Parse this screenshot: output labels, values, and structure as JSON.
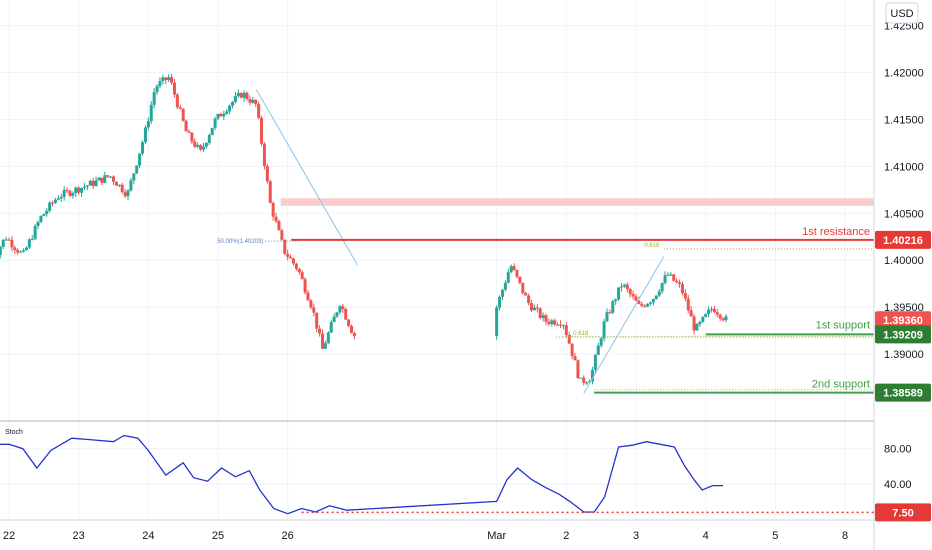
{
  "currency": "USD",
  "chart_data": [
    {
      "type": "candlestick",
      "ylim": [
        1.3835,
        1.4272
      ],
      "y_ticks": [
        1.39,
        1.395,
        1.4,
        1.405,
        1.41,
        1.415,
        1.42,
        1.425
      ],
      "y_tick_labels": [
        "1.39000",
        "1.39500",
        "1.40000",
        "1.40500",
        "1.41000",
        "1.41500",
        "1.42000",
        "1.42500"
      ],
      "x_ticks": [
        {
          "label": "22",
          "day": 22
        },
        {
          "label": "23",
          "day": 23
        },
        {
          "label": "24",
          "day": 24
        },
        {
          "label": "25",
          "day": 25
        },
        {
          "label": "26",
          "day": 26
        },
        {
          "label": "Mar",
          "day": 29
        },
        {
          "label": "2",
          "day": 30
        },
        {
          "label": "3",
          "day": 31
        },
        {
          "label": "4",
          "day": 32
        },
        {
          "label": "5",
          "day": 33
        },
        {
          "label": "8",
          "day": 34
        }
      ],
      "colors": {
        "up": "#26a69a",
        "down": "#ef5350",
        "resistance": "#e53935",
        "support": "#43a047",
        "zone": "#f8cdcd",
        "fib": "#a3a83a",
        "trendline": "#8ec3e8"
      },
      "series": [
        {
          "anchors": [
            {
              "day": 21.75,
              "price": 1.3998
            },
            {
              "day": 21.95,
              "price": 1.4025
            },
            {
              "day": 22.2,
              "price": 1.4005
            },
            {
              "day": 22.45,
              "price": 1.4045
            },
            {
              "day": 22.7,
              "price": 1.4068
            },
            {
              "day": 22.95,
              "price": 1.4075
            },
            {
              "day": 23.2,
              "price": 1.4082
            },
            {
              "day": 23.45,
              "price": 1.409
            },
            {
              "day": 23.7,
              "price": 1.407
            },
            {
              "day": 23.95,
              "price": 1.4135
            },
            {
              "day": 24.1,
              "price": 1.4185
            },
            {
              "day": 24.3,
              "price": 1.4195
            },
            {
              "day": 24.55,
              "price": 1.4135
            },
            {
              "day": 24.75,
              "price": 1.4115
            },
            {
              "day": 24.95,
              "price": 1.4148
            },
            {
              "day": 25.15,
              "price": 1.4165
            },
            {
              "day": 25.35,
              "price": 1.4178
            },
            {
              "day": 25.55,
              "price": 1.4165
            },
            {
              "day": 25.75,
              "price": 1.406
            },
            {
              "day": 25.95,
              "price": 1.401
            },
            {
              "day": 26.15,
              "price": 1.399
            },
            {
              "day": 26.35,
              "price": 1.395
            },
            {
              "day": 26.5,
              "price": 1.3905
            },
            {
              "day": 26.75,
              "price": 1.3955
            },
            {
              "day": 26.95,
              "price": 1.392
            },
            {
              "day": 29.0,
              "price": 1.395
            },
            {
              "day": 29.2,
              "price": 1.3995
            },
            {
              "day": 29.45,
              "price": 1.3955
            },
            {
              "day": 29.7,
              "price": 1.3935
            },
            {
              "day": 29.95,
              "price": 1.3935
            },
            {
              "day": 30.05,
              "price": 1.391
            },
            {
              "day": 30.2,
              "price": 1.387
            },
            {
              "day": 30.35,
              "price": 1.3875
            },
            {
              "day": 30.55,
              "price": 1.3935
            },
            {
              "day": 30.8,
              "price": 1.3975
            },
            {
              "day": 31.05,
              "price": 1.395
            },
            {
              "day": 31.25,
              "price": 1.396
            },
            {
              "day": 31.45,
              "price": 1.3985
            },
            {
              "day": 31.65,
              "price": 1.397
            },
            {
              "day": 31.85,
              "price": 1.3925
            },
            {
              "day": 32.1,
              "price": 1.395
            },
            {
              "day": 32.3,
              "price": 1.3936
            }
          ]
        }
      ]
    },
    {
      "type": "line",
      "label": "Stoch",
      "ylim": [
        0,
        107
      ],
      "y_ticks": [
        40,
        80
      ],
      "y_tick_labels": [
        "40.00",
        "80.00"
      ],
      "series": [
        {
          "points": [
            {
              "day": 21.75,
              "value": 85
            },
            {
              "day": 22.0,
              "value": 85
            },
            {
              "day": 22.2,
              "value": 80
            },
            {
              "day": 22.4,
              "value": 58
            },
            {
              "day": 22.6,
              "value": 78
            },
            {
              "day": 22.9,
              "value": 92
            },
            {
              "day": 23.2,
              "value": 90
            },
            {
              "day": 23.5,
              "value": 88
            },
            {
              "day": 23.65,
              "value": 95
            },
            {
              "day": 23.85,
              "value": 92
            },
            {
              "day": 24.0,
              "value": 78
            },
            {
              "day": 24.25,
              "value": 50
            },
            {
              "day": 24.5,
              "value": 64
            },
            {
              "day": 24.65,
              "value": 47
            },
            {
              "day": 24.85,
              "value": 43
            },
            {
              "day": 25.05,
              "value": 58
            },
            {
              "day": 25.25,
              "value": 48
            },
            {
              "day": 25.45,
              "value": 55
            },
            {
              "day": 25.6,
              "value": 33
            },
            {
              "day": 25.8,
              "value": 12
            },
            {
              "day": 26.0,
              "value": 6
            },
            {
              "day": 26.2,
              "value": 12
            },
            {
              "day": 26.4,
              "value": 8
            },
            {
              "day": 26.6,
              "value": 15
            },
            {
              "day": 26.85,
              "value": 10
            },
            {
              "day": 29.0,
              "value": 20
            },
            {
              "day": 29.15,
              "value": 45
            },
            {
              "day": 29.3,
              "value": 58
            },
            {
              "day": 29.5,
              "value": 45
            },
            {
              "day": 29.7,
              "value": 36
            },
            {
              "day": 29.9,
              "value": 28
            },
            {
              "day": 30.05,
              "value": 20
            },
            {
              "day": 30.25,
              "value": 8
            },
            {
              "day": 30.4,
              "value": 8
            },
            {
              "day": 30.55,
              "value": 25
            },
            {
              "day": 30.75,
              "value": 82
            },
            {
              "day": 30.95,
              "value": 84
            },
            {
              "day": 31.15,
              "value": 88
            },
            {
              "day": 31.35,
              "value": 85
            },
            {
              "day": 31.55,
              "value": 82
            },
            {
              "day": 31.7,
              "value": 60
            },
            {
              "day": 31.85,
              "value": 43
            },
            {
              "day": 31.95,
              "value": 33
            },
            {
              "day": 32.1,
              "value": 38
            },
            {
              "day": 32.25,
              "value": 38
            }
          ]
        }
      ]
    }
  ],
  "levels": {
    "resistance": {
      "label": "1st resistance",
      "price": 1.40216,
      "price_text": "1.40216"
    },
    "support1": {
      "label": "1st support",
      "price": 1.39209,
      "price_text": "1.39209"
    },
    "support2": {
      "label": "2nd support",
      "price": 1.38589,
      "price_text": "1.38589"
    },
    "current": {
      "price": 1.3936,
      "price_text": "1.39360"
    },
    "zone": {
      "from": 1.4058,
      "to": 1.4066
    },
    "fib_upper": {
      "label": "0.618",
      "price": 1.4012
    },
    "fib_lower": {
      "label": "0.618",
      "price": 1.3918
    },
    "fib_mid": {
      "label": "50.00%(1.40203)",
      "price": 1.40203
    },
    "stoch_level": {
      "value": 7.5,
      "value_text": "7.50"
    }
  },
  "trendlines": [
    {
      "from": {
        "day": 25.55,
        "price": 1.4182
      },
      "to": {
        "day": 27.0,
        "price": 1.3995
      }
    },
    {
      "from": {
        "day": 30.25,
        "price": 1.3858
      },
      "to": {
        "day": 31.4,
        "price": 1.4004
      }
    }
  ]
}
